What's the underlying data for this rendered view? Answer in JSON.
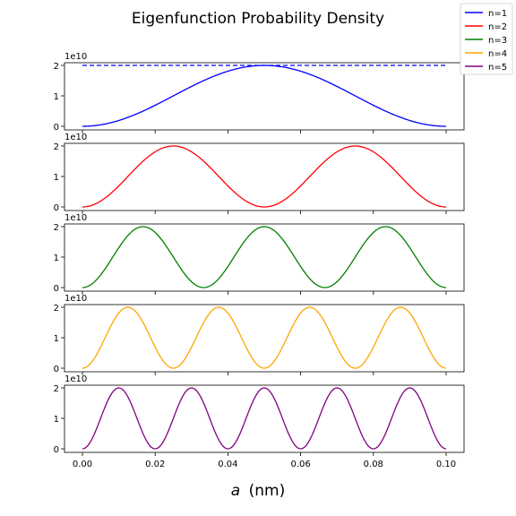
{
  "chart_data": {
    "type": "line",
    "title": "Eigenfunction Probability Density",
    "xlabel": "a (nm)",
    "xlabel_var": "a",
    "xlabel_unit": "(nm)",
    "ylabel": "",
    "xlim": [
      0,
      0.1
    ],
    "ylim": [
      0,
      20000000000.0
    ],
    "x_ticks": [
      "0.00",
      "0.02",
      "0.04",
      "0.06",
      "0.08",
      "0.10"
    ],
    "y_ticks": [
      "0",
      "1",
      "2"
    ],
    "y_offset_label": "1e10",
    "grid": false,
    "legend_position": "top-right",
    "reference_line": {
      "y": 20000000000.0,
      "style": "dashed",
      "color": "#0000ff",
      "panel": 0
    },
    "series": [
      {
        "name": "n=1",
        "n": 1,
        "color": "#0000ff"
      },
      {
        "name": "n=2",
        "n": 2,
        "color": "#ff0000"
      },
      {
        "name": "n=3",
        "n": 3,
        "color": "#008000"
      },
      {
        "name": "n=4",
        "n": 4,
        "color": "#ffa500"
      },
      {
        "name": "n=5",
        "n": 5,
        "color": "#800080"
      }
    ]
  }
}
